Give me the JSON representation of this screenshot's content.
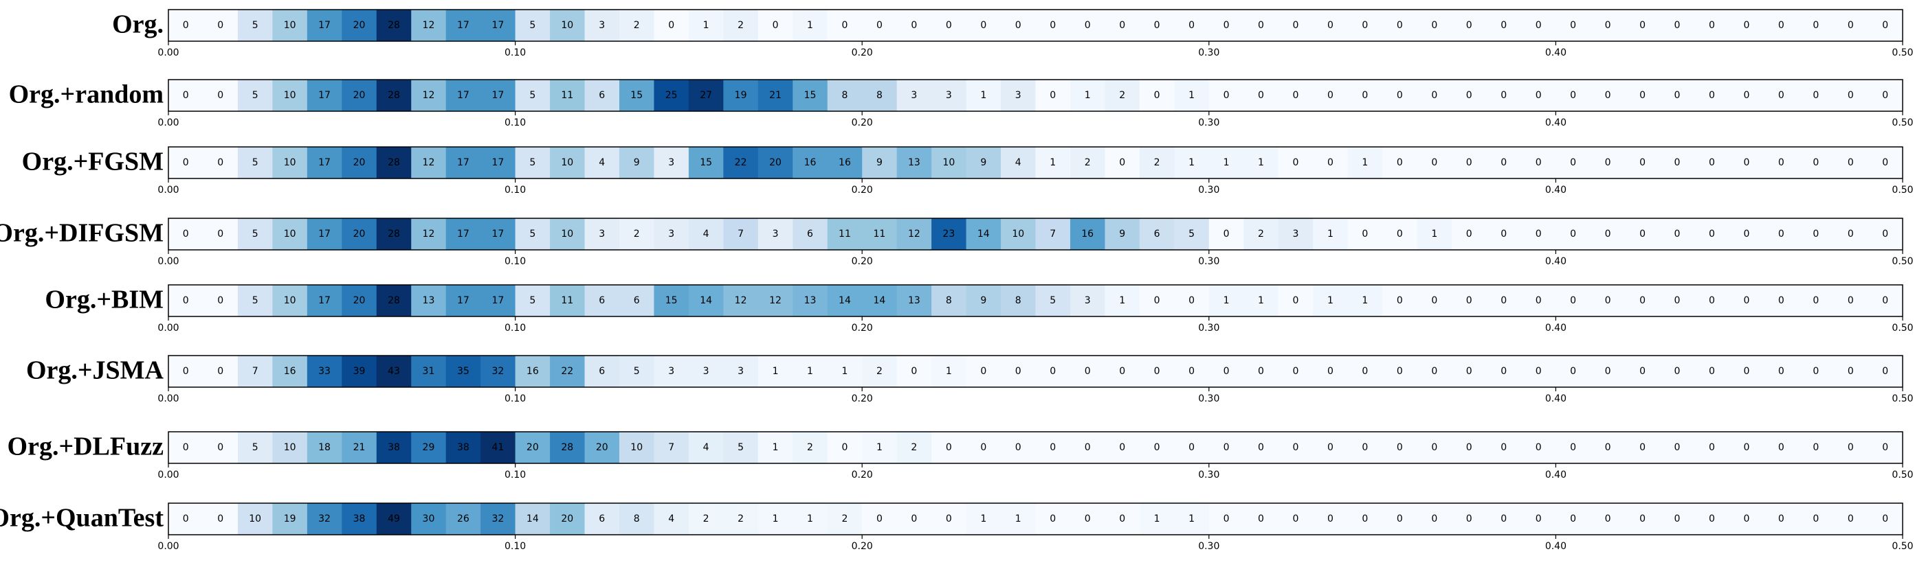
{
  "chart_data": [
    {
      "type": "heatmap",
      "title": "Org.",
      "cmap": "Blues",
      "xlim": [
        0,
        0.5
      ],
      "xticks": [
        {
          "value": 0,
          "label": "0.00"
        },
        {
          "value": 0.1,
          "label": "0.10"
        },
        {
          "value": 0.2,
          "label": "0.20"
        },
        {
          "value": 0.3,
          "label": "0.30"
        },
        {
          "value": 0.4,
          "label": "0.40"
        },
        {
          "value": 0.5,
          "label": "0.50"
        }
      ],
      "values": [
        0,
        0,
        5,
        10,
        17,
        20,
        28,
        12,
        17,
        17,
        5,
        10,
        3,
        2,
        0,
        1,
        2,
        0,
        1,
        0,
        0,
        0,
        0,
        0,
        0,
        0,
        0,
        0,
        0,
        0,
        0,
        0,
        0,
        0,
        0,
        0,
        0,
        0,
        0,
        0,
        0,
        0,
        0,
        0,
        0,
        0,
        0,
        0,
        0,
        0
      ]
    },
    {
      "type": "heatmap",
      "title": "Org.+random",
      "cmap": "Blues",
      "xlim": [
        0,
        0.5
      ],
      "xticks": [
        {
          "value": 0,
          "label": "0.00"
        },
        {
          "value": 0.1,
          "label": "0.10"
        },
        {
          "value": 0.2,
          "label": "0.20"
        },
        {
          "value": 0.3,
          "label": "0.30"
        },
        {
          "value": 0.4,
          "label": "0.40"
        },
        {
          "value": 0.5,
          "label": "0.50"
        }
      ],
      "values": [
        0,
        0,
        5,
        10,
        17,
        20,
        28,
        12,
        17,
        17,
        5,
        11,
        6,
        15,
        25,
        27,
        19,
        21,
        15,
        8,
        8,
        3,
        3,
        1,
        3,
        0,
        1,
        2,
        0,
        1,
        0,
        0,
        0,
        0,
        0,
        0,
        0,
        0,
        0,
        0,
        0,
        0,
        0,
        0,
        0,
        0,
        0,
        0,
        0,
        0
      ]
    },
    {
      "type": "heatmap",
      "title": "Org.+FGSM",
      "cmap": "Blues",
      "xlim": [
        0,
        0.5
      ],
      "xticks": [
        {
          "value": 0,
          "label": "0.00"
        },
        {
          "value": 0.1,
          "label": "0.10"
        },
        {
          "value": 0.2,
          "label": "0.20"
        },
        {
          "value": 0.3,
          "label": "0.30"
        },
        {
          "value": 0.4,
          "label": "0.40"
        },
        {
          "value": 0.5,
          "label": "0.50"
        }
      ],
      "values": [
        0,
        0,
        5,
        10,
        17,
        20,
        28,
        12,
        17,
        17,
        5,
        10,
        4,
        9,
        3,
        15,
        22,
        20,
        16,
        16,
        9,
        13,
        10,
        9,
        4,
        1,
        2,
        0,
        2,
        1,
        1,
        1,
        0,
        0,
        1,
        0,
        0,
        0,
        0,
        0,
        0,
        0,
        0,
        0,
        0,
        0,
        0,
        0,
        0,
        0
      ]
    },
    {
      "type": "heatmap",
      "title": "Org.+DIFGSM",
      "cmap": "Blues",
      "xlim": [
        0,
        0.5
      ],
      "xticks": [
        {
          "value": 0,
          "label": "0.00"
        },
        {
          "value": 0.1,
          "label": "0.10"
        },
        {
          "value": 0.2,
          "label": "0.20"
        },
        {
          "value": 0.3,
          "label": "0.30"
        },
        {
          "value": 0.4,
          "label": "0.40"
        },
        {
          "value": 0.5,
          "label": "0.50"
        }
      ],
      "values": [
        0,
        0,
        5,
        10,
        17,
        20,
        28,
        12,
        17,
        17,
        5,
        10,
        3,
        2,
        3,
        4,
        7,
        3,
        6,
        11,
        11,
        12,
        23,
        14,
        10,
        7,
        16,
        9,
        6,
        5,
        0,
        2,
        3,
        1,
        0,
        0,
        1,
        0,
        0,
        0,
        0,
        0,
        0,
        0,
        0,
        0,
        0,
        0,
        0,
        0
      ]
    },
    {
      "type": "heatmap",
      "title": "Org.+BIM",
      "cmap": "Blues",
      "xlim": [
        0,
        0.5
      ],
      "xticks": [
        {
          "value": 0,
          "label": "0.00"
        },
        {
          "value": 0.1,
          "label": "0.10"
        },
        {
          "value": 0.2,
          "label": "0.20"
        },
        {
          "value": 0.3,
          "label": "0.30"
        },
        {
          "value": 0.4,
          "label": "0.40"
        },
        {
          "value": 0.5,
          "label": "0.50"
        }
      ],
      "values": [
        0,
        0,
        5,
        10,
        17,
        20,
        28,
        13,
        17,
        17,
        5,
        11,
        6,
        6,
        15,
        14,
        12,
        12,
        13,
        14,
        14,
        13,
        8,
        9,
        8,
        5,
        3,
        1,
        0,
        0,
        1,
        1,
        0,
        1,
        1,
        0,
        0,
        0,
        0,
        0,
        0,
        0,
        0,
        0,
        0,
        0,
        0,
        0,
        0,
        0
      ]
    },
    {
      "type": "heatmap",
      "title": "Org.+JSMA",
      "cmap": "Blues",
      "xlim": [
        0,
        0.5
      ],
      "xticks": [
        {
          "value": 0,
          "label": "0.00"
        },
        {
          "value": 0.1,
          "label": "0.10"
        },
        {
          "value": 0.2,
          "label": "0.20"
        },
        {
          "value": 0.3,
          "label": "0.30"
        },
        {
          "value": 0.4,
          "label": "0.40"
        },
        {
          "value": 0.5,
          "label": "0.50"
        }
      ],
      "values": [
        0,
        0,
        7,
        16,
        33,
        39,
        43,
        31,
        35,
        32,
        16,
        22,
        6,
        5,
        3,
        3,
        3,
        1,
        1,
        1,
        2,
        0,
        1,
        0,
        0,
        0,
        0,
        0,
        0,
        0,
        0,
        0,
        0,
        0,
        0,
        0,
        0,
        0,
        0,
        0,
        0,
        0,
        0,
        0,
        0,
        0,
        0,
        0,
        0,
        0
      ]
    },
    {
      "type": "heatmap",
      "title": "Org.+DLFuzz",
      "cmap": "Blues",
      "xlim": [
        0,
        0.5
      ],
      "xticks": [
        {
          "value": 0,
          "label": "0.00"
        },
        {
          "value": 0.1,
          "label": "0.10"
        },
        {
          "value": 0.2,
          "label": "0.20"
        },
        {
          "value": 0.3,
          "label": "0.30"
        },
        {
          "value": 0.4,
          "label": "0.40"
        },
        {
          "value": 0.5,
          "label": "0.50"
        }
      ],
      "values": [
        0,
        0,
        5,
        10,
        18,
        21,
        38,
        29,
        38,
        41,
        20,
        28,
        20,
        10,
        7,
        4,
        5,
        1,
        2,
        0,
        1,
        2,
        0,
        0,
        0,
        0,
        0,
        0,
        0,
        0,
        0,
        0,
        0,
        0,
        0,
        0,
        0,
        0,
        0,
        0,
        0,
        0,
        0,
        0,
        0,
        0,
        0,
        0,
        0,
        0
      ]
    },
    {
      "type": "heatmap",
      "title": "Org.+QuanTest",
      "cmap": "Blues",
      "xlim": [
        0,
        0.5
      ],
      "xticks": [
        {
          "value": 0,
          "label": "0.00"
        },
        {
          "value": 0.1,
          "label": "0.10"
        },
        {
          "value": 0.2,
          "label": "0.20"
        },
        {
          "value": 0.3,
          "label": "0.30"
        },
        {
          "value": 0.4,
          "label": "0.40"
        },
        {
          "value": 0.5,
          "label": "0.50"
        }
      ],
      "values": [
        0,
        0,
        10,
        19,
        32,
        38,
        49,
        30,
        26,
        32,
        14,
        20,
        6,
        8,
        4,
        2,
        2,
        1,
        1,
        2,
        0,
        0,
        0,
        1,
        1,
        0,
        0,
        0,
        1,
        1,
        0,
        0,
        0,
        0,
        0,
        0,
        0,
        0,
        0,
        0,
        0,
        0,
        0,
        0,
        0,
        0,
        0,
        0,
        0,
        0
      ]
    }
  ]
}
